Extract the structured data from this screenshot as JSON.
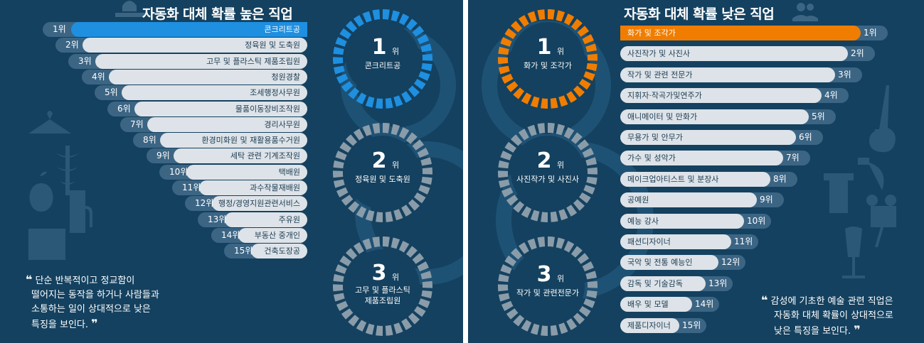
{
  "left": {
    "title": "자동화 대체 확률 높은 직업",
    "items": [
      {
        "rank": "1위",
        "job": "콘크리트공"
      },
      {
        "rank": "2위",
        "job": "정육원 및 도축원"
      },
      {
        "rank": "3위",
        "job": "고무 및 플라스틱 제품조립원"
      },
      {
        "rank": "4위",
        "job": "청원경찰"
      },
      {
        "rank": "5위",
        "job": "조세행정사무원"
      },
      {
        "rank": "6위",
        "job": "물품이동장비조작원"
      },
      {
        "rank": "7위",
        "job": "경리사무원"
      },
      {
        "rank": "8위",
        "job": "환경미화원 및 재활용품수거원"
      },
      {
        "rank": "9위",
        "job": "세탁 관련 기계조작원"
      },
      {
        "rank": "10위",
        "job": "택배원"
      },
      {
        "rank": "11위",
        "job": "과수작물재배원"
      },
      {
        "rank": "12위",
        "job": "행정/경영지원관련서비스"
      },
      {
        "rank": "13위",
        "job": "주유원"
      },
      {
        "rank": "14위",
        "job": "부동산 중개인"
      },
      {
        "rank": "15위",
        "job": "건축도장공"
      }
    ],
    "donuts": [
      {
        "rank": "1",
        "unit": "위",
        "line1": "콘크리트공",
        "line2": ""
      },
      {
        "rank": "2",
        "unit": "위",
        "line1": "정육원 및 도축원",
        "line2": ""
      },
      {
        "rank": "3",
        "unit": "위",
        "line1": "고무 및 플라스틱",
        "line2": "제품조립원"
      }
    ],
    "quote": {
      "open": "❝",
      "close": "❞",
      "line1": "단순 반복적이고 정교함이",
      "line2": "떨어지는 동작을 하거나 사람들과",
      "line3": "소통하는 일이 상대적으로 낮은",
      "line4": "특징을 보인다."
    }
  },
  "right": {
    "title": "자동화 대체 확률 낮은 직업",
    "items": [
      {
        "rank": "1위",
        "job": "화가 및 조각가"
      },
      {
        "rank": "2위",
        "job": "사진작가 및 사진사"
      },
      {
        "rank": "3위",
        "job": "작가 및 관련 전문가"
      },
      {
        "rank": "4위",
        "job": "지휘자·작곡가및연주가"
      },
      {
        "rank": "5위",
        "job": "애니메이터 및 만화가"
      },
      {
        "rank": "6위",
        "job": "무용가 및 안무가"
      },
      {
        "rank": "7위",
        "job": "가수 및 성악가"
      },
      {
        "rank": "8위",
        "job": "메이크업아티스트 및 분장사"
      },
      {
        "rank": "9위",
        "job": "공예원"
      },
      {
        "rank": "10위",
        "job": "예능 강사"
      },
      {
        "rank": "11위",
        "job": "패션디자이너"
      },
      {
        "rank": "12위",
        "job": "국악 및 전통 예능인"
      },
      {
        "rank": "13위",
        "job": "감독 및 기술감독"
      },
      {
        "rank": "14위",
        "job": "배우 및 모델"
      },
      {
        "rank": "15위",
        "job": "제품디자이너"
      }
    ],
    "donuts": [
      {
        "rank": "1",
        "unit": "위",
        "line1": "화가 및 조각가",
        "line2": ""
      },
      {
        "rank": "2",
        "unit": "위",
        "line1": "사진작가 및 사진사",
        "line2": ""
      },
      {
        "rank": "3",
        "unit": "위",
        "line1": "작가 및 관련전문가",
        "line2": ""
      }
    ],
    "quote": {
      "open": "❝",
      "close": "❞",
      "line1": "감성에 기초한 예술 관련 직업은",
      "line2": "자동화 대체 확률이 상대적으로",
      "line3": "낮은 특징을 보인다."
    }
  },
  "colors": {
    "background": "#14415f",
    "blue_highlight": "#1f8fe0",
    "orange_highlight": "#f07d00",
    "gray_bar": "#dde3e8",
    "pill": "#3c6584",
    "donut_gray": "#8a9ca9"
  },
  "chart_data": [
    {
      "type": "bar",
      "title": "자동화 대체 확률 높은 직업",
      "categories": [
        "콘크리트공",
        "정육원 및 도축원",
        "고무 및 플라스틱 제품조립원",
        "청원경찰",
        "조세행정사무원",
        "물품이동장비조작원",
        "경리사무원",
        "환경미화원 및 재활용품수거원",
        "세탁 관련 기계조작원",
        "택배원",
        "과수작물재배원",
        "행정/경영지원관련서비스",
        "주유원",
        "부동산 중개인",
        "건축도장공"
      ],
      "values": [
        1,
        2,
        3,
        4,
        5,
        6,
        7,
        8,
        9,
        10,
        11,
        12,
        13,
        14,
        15
      ]
    },
    {
      "type": "bar",
      "title": "자동화 대체 확률 낮은 직업",
      "categories": [
        "화가 및 조각가",
        "사진작가 및 사진사",
        "작가 및 관련 전문가",
        "지휘자·작곡가및연주가",
        "애니메이터 및 만화가",
        "무용가 및 안무가",
        "가수 및 성악가",
        "메이크업아티스트 및 분장사",
        "공예원",
        "예능 강사",
        "패션디자이너",
        "국악 및 전통 예능인",
        "감독 및 기술감독",
        "배우 및 모델",
        "제품디자이너"
      ],
      "values": [
        1,
        2,
        3,
        4,
        5,
        6,
        7,
        8,
        9,
        10,
        11,
        12,
        13,
        14,
        15
      ]
    }
  ]
}
